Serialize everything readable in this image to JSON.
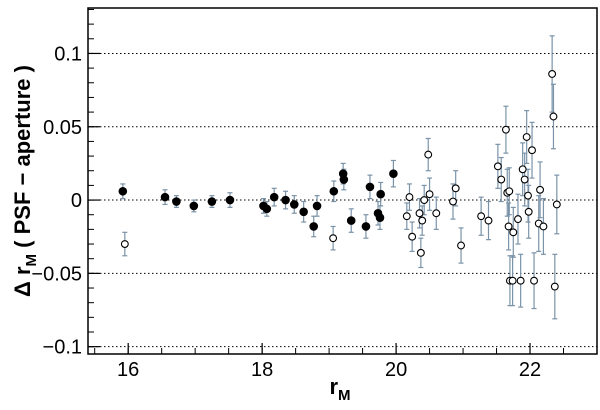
{
  "chart_data": {
    "type": "scatter",
    "xlabel": {
      "main": "r",
      "sub": "M"
    },
    "ylabel": {
      "prefix": "Δ r",
      "sub": "M",
      "suffix": " ( PSF − aperture )"
    },
    "xlim": [
      15.4,
      23.0
    ],
    "ylim": [
      -0.105,
      0.131
    ],
    "x_ticks": [
      16,
      18,
      20,
      22
    ],
    "x_tick_labels": [
      "16",
      "18",
      "20",
      "22"
    ],
    "y_ticks": [
      -0.1,
      -0.05,
      0,
      0.05,
      0.1
    ],
    "y_tick_labels": [
      "−0.1",
      "−0.05",
      "0",
      "0.05",
      "0.1"
    ],
    "grid": {
      "horizontal_dotted": true
    },
    "colors": {
      "error_bar": "#7a93a8",
      "marker": "#000000",
      "axis": "#000000",
      "grid": "#000000"
    },
    "series": [
      {
        "marker": "filled-circle",
        "points": [
          {
            "x": 15.92,
            "y": 0.006,
            "err": 0.005
          },
          {
            "x": 16.55,
            "y": 0.002,
            "err": 0.005
          },
          {
            "x": 16.72,
            "y": -0.001,
            "err": 0.004
          },
          {
            "x": 16.98,
            "y": -0.004,
            "err": 0.004
          },
          {
            "x": 17.25,
            "y": -0.001,
            "err": 0.004
          },
          {
            "x": 17.52,
            "y": 0.0,
            "err": 0.005
          },
          {
            "x": 18.02,
            "y": -0.004,
            "err": 0.005
          },
          {
            "x": 18.07,
            "y": -0.006,
            "err": 0.005
          },
          {
            "x": 18.18,
            "y": 0.002,
            "err": 0.006
          },
          {
            "x": 18.35,
            "y": 0.0,
            "err": 0.006
          },
          {
            "x": 18.48,
            "y": -0.003,
            "err": 0.006
          },
          {
            "x": 18.62,
            "y": -0.008,
            "err": 0.007
          },
          {
            "x": 18.77,
            "y": -0.018,
            "err": 0.007
          },
          {
            "x": 18.82,
            "y": -0.004,
            "err": 0.007
          },
          {
            "x": 19.07,
            "y": 0.006,
            "err": 0.007
          },
          {
            "x": 19.21,
            "y": 0.018,
            "err": 0.007
          },
          {
            "x": 19.22,
            "y": 0.014,
            "err": 0.007
          },
          {
            "x": 19.33,
            "y": -0.014,
            "err": 0.008
          },
          {
            "x": 19.55,
            "y": -0.018,
            "err": 0.008
          },
          {
            "x": 19.61,
            "y": 0.009,
            "err": 0.008
          },
          {
            "x": 19.73,
            "y": -0.009,
            "err": 0.008
          },
          {
            "x": 19.76,
            "y": -0.012,
            "err": 0.008
          },
          {
            "x": 19.77,
            "y": 0.004,
            "err": 0.008
          },
          {
            "x": 19.96,
            "y": 0.018,
            "err": 0.009
          }
        ]
      },
      {
        "marker": "open-circle",
        "points": [
          {
            "x": 15.95,
            "y": -0.03,
            "err": 0.008
          },
          {
            "x": 19.06,
            "y": -0.026,
            "err": 0.008
          },
          {
            "x": 20.16,
            "y": -0.011,
            "err": 0.009
          },
          {
            "x": 20.2,
            "y": 0.002,
            "err": 0.009
          },
          {
            "x": 20.24,
            "y": -0.025,
            "err": 0.01
          },
          {
            "x": 20.35,
            "y": -0.009,
            "err": 0.01
          },
          {
            "x": 20.37,
            "y": -0.036,
            "err": 0.01
          },
          {
            "x": 20.39,
            "y": -0.014,
            "err": 0.01
          },
          {
            "x": 20.42,
            "y": 0.0,
            "err": 0.01
          },
          {
            "x": 20.48,
            "y": 0.031,
            "err": 0.011
          },
          {
            "x": 20.5,
            "y": 0.004,
            "err": 0.011
          },
          {
            "x": 20.6,
            "y": -0.009,
            "err": 0.011
          },
          {
            "x": 20.85,
            "y": -0.001,
            "err": 0.012
          },
          {
            "x": 20.89,
            "y": 0.008,
            "err": 0.012
          },
          {
            "x": 20.97,
            "y": -0.031,
            "err": 0.012
          },
          {
            "x": 21.27,
            "y": -0.011,
            "err": 0.013
          },
          {
            "x": 21.38,
            "y": -0.014,
            "err": 0.013
          },
          {
            "x": 21.52,
            "y": 0.023,
            "err": 0.015
          },
          {
            "x": 21.57,
            "y": 0.014,
            "err": 0.015
          },
          {
            "x": 21.64,
            "y": 0.048,
            "err": 0.016
          },
          {
            "x": 21.66,
            "y": 0.005,
            "err": 0.016
          },
          {
            "x": 21.68,
            "y": -0.018,
            "err": 0.016
          },
          {
            "x": 21.69,
            "y": 0.006,
            "err": 0.016
          },
          {
            "x": 21.7,
            "y": -0.055,
            "err": 0.017
          },
          {
            "x": 21.74,
            "y": -0.055,
            "err": 0.017
          },
          {
            "x": 21.75,
            "y": -0.022,
            "err": 0.017
          },
          {
            "x": 21.82,
            "y": -0.013,
            "err": 0.017
          },
          {
            "x": 21.86,
            "y": -0.055,
            "err": 0.018
          },
          {
            "x": 21.89,
            "y": 0.021,
            "err": 0.018
          },
          {
            "x": 21.92,
            "y": 0.014,
            "err": 0.018
          },
          {
            "x": 21.95,
            "y": 0.043,
            "err": 0.018
          },
          {
            "x": 21.97,
            "y": 0.003,
            "err": 0.018
          },
          {
            "x": 21.98,
            "y": -0.008,
            "err": 0.018
          },
          {
            "x": 22.03,
            "y": 0.034,
            "err": 0.019
          },
          {
            "x": 22.06,
            "y": -0.055,
            "err": 0.019
          },
          {
            "x": 22.13,
            "y": -0.016,
            "err": 0.019
          },
          {
            "x": 22.15,
            "y": 0.007,
            "err": 0.019
          },
          {
            "x": 22.2,
            "y": -0.018,
            "err": 0.019
          },
          {
            "x": 22.33,
            "y": 0.086,
            "err": 0.026
          },
          {
            "x": 22.35,
            "y": 0.057,
            "err": 0.022
          },
          {
            "x": 22.37,
            "y": -0.059,
            "err": 0.022
          },
          {
            "x": 22.4,
            "y": -0.003,
            "err": 0.02
          }
        ]
      }
    ]
  }
}
